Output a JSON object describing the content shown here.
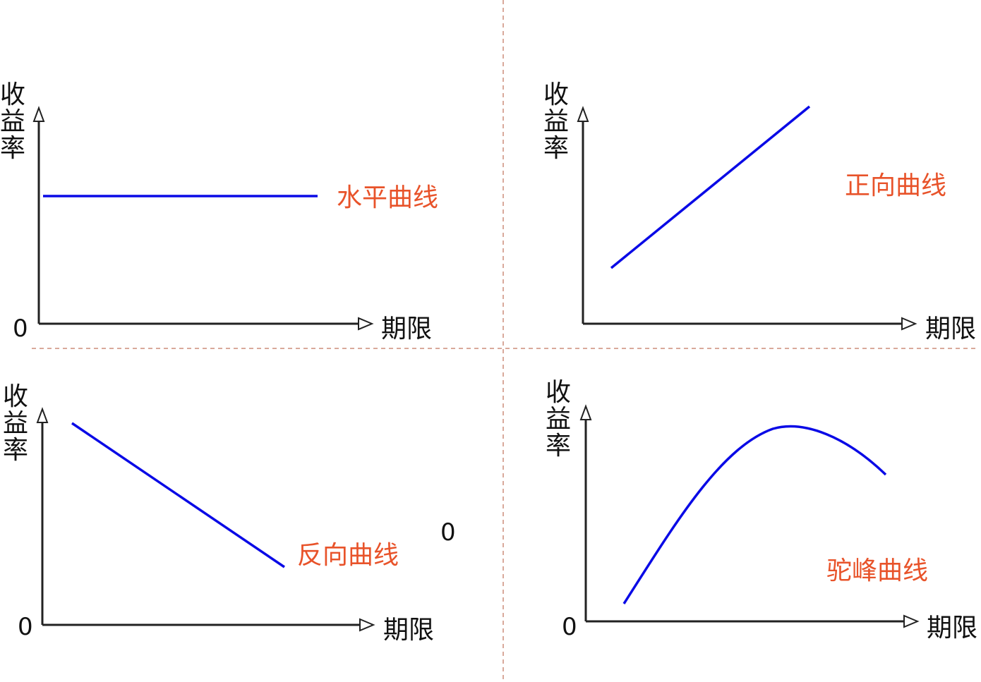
{
  "panels": [
    {
      "y_label": [
        "收",
        "益",
        "率"
      ],
      "x_label": "期限",
      "origin_label": "0",
      "curve_label": "水平曲线"
    },
    {
      "y_label": [
        "收",
        "益",
        "率"
      ],
      "x_label": "期限",
      "origin_label": "",
      "curve_label": "正向曲线"
    },
    {
      "y_label": [
        "收",
        "益",
        "率"
      ],
      "x_label": "期限",
      "origin_label": "0",
      "curve_label": "反向曲线",
      "stray_label": "0"
    },
    {
      "y_label": [
        "收",
        "益",
        "率"
      ],
      "x_label": "期限",
      "origin_label": "0",
      "curve_label": "驼峰曲线"
    }
  ],
  "colors": {
    "curve": "#0a0ae6",
    "label": "#e8532a",
    "axis": "#222222",
    "divider": "#d9a99b"
  }
}
